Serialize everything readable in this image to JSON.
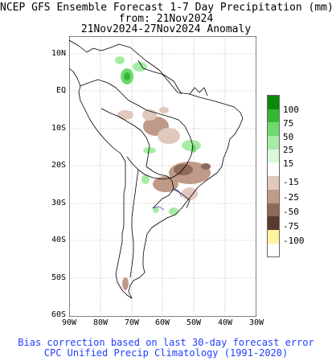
{
  "title": {
    "line1": "NCEP GFS Ensemble Forecast 1-7 Day Precipitation (mm)",
    "line2": "from: 21Nov2024",
    "line3": "21Nov2024-27Nov2024 Anomaly"
  },
  "axes": {
    "lat_labels": [
      "10N",
      "EQ",
      "10S",
      "20S",
      "30S",
      "40S",
      "50S",
      "60S"
    ],
    "lon_labels": [
      "90W",
      "80W",
      "70W",
      "60W",
      "50W",
      "40W",
      "30W"
    ]
  },
  "legend": {
    "labels": [
      "100",
      "75",
      "50",
      "25",
      "15",
      "-15",
      "-25",
      "-50",
      "-75",
      "-100"
    ],
    "colors": [
      "#0a8a0a",
      "#34b834",
      "#6fd96f",
      "#a6eca6",
      "#d9f7d9",
      "#ffffff",
      "#e0c8bc",
      "#c09a88",
      "#8e6a5a",
      "#5a3a2e",
      "#fff2a0"
    ]
  },
  "footer": {
    "line1": "Bias correction based on last 30-day forecast error",
    "line2": "CPC Unified Precip Climatology (1991-2020)"
  },
  "colors": {
    "text_footer": "#1f3fff",
    "coastline": "#000000",
    "grid": "#888888"
  }
}
